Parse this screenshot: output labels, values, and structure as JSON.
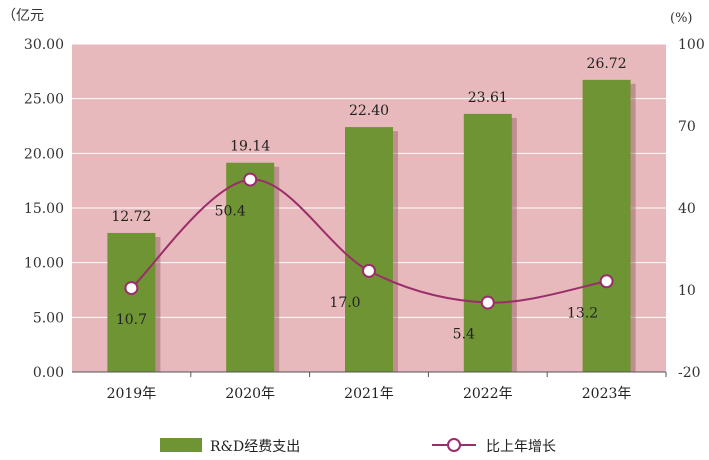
{
  "chart_data": {
    "type": "bar",
    "categories": [
      "2019年",
      "2020年",
      "2021年",
      "2022年",
      "2023年"
    ],
    "series": [
      {
        "name": "R&D经费支出",
        "type": "bar",
        "axis": "left",
        "color": "#6e9434",
        "values": [
          12.72,
          19.14,
          22.4,
          23.61,
          26.72
        ],
        "labels": [
          "12.72",
          "19.14",
          "22.40",
          "23.61",
          "26.72"
        ]
      },
      {
        "name": "比上年增长",
        "type": "line",
        "axis": "right",
        "color": "#9b2d6b",
        "values": [
          10.7,
          50.4,
          17.0,
          5.4,
          13.2
        ],
        "labels": [
          "10.7",
          "50.4",
          "17.0",
          "5.4",
          "13.2"
        ]
      }
    ],
    "y_left": {
      "unit": "（亿元",
      "ylim": [
        0,
        30
      ],
      "ticks": [
        "0.00",
        "5.00",
        "10.00",
        "15.00",
        "20.00",
        "25.00",
        "30.00"
      ]
    },
    "y_right": {
      "unit": "(%)",
      "ylim": [
        -20,
        100
      ],
      "ticks": [
        "-20",
        "10",
        "40",
        "70",
        "100"
      ]
    },
    "background_color": "#e8b9bc",
    "grid": true,
    "legend_position": "bottom"
  }
}
